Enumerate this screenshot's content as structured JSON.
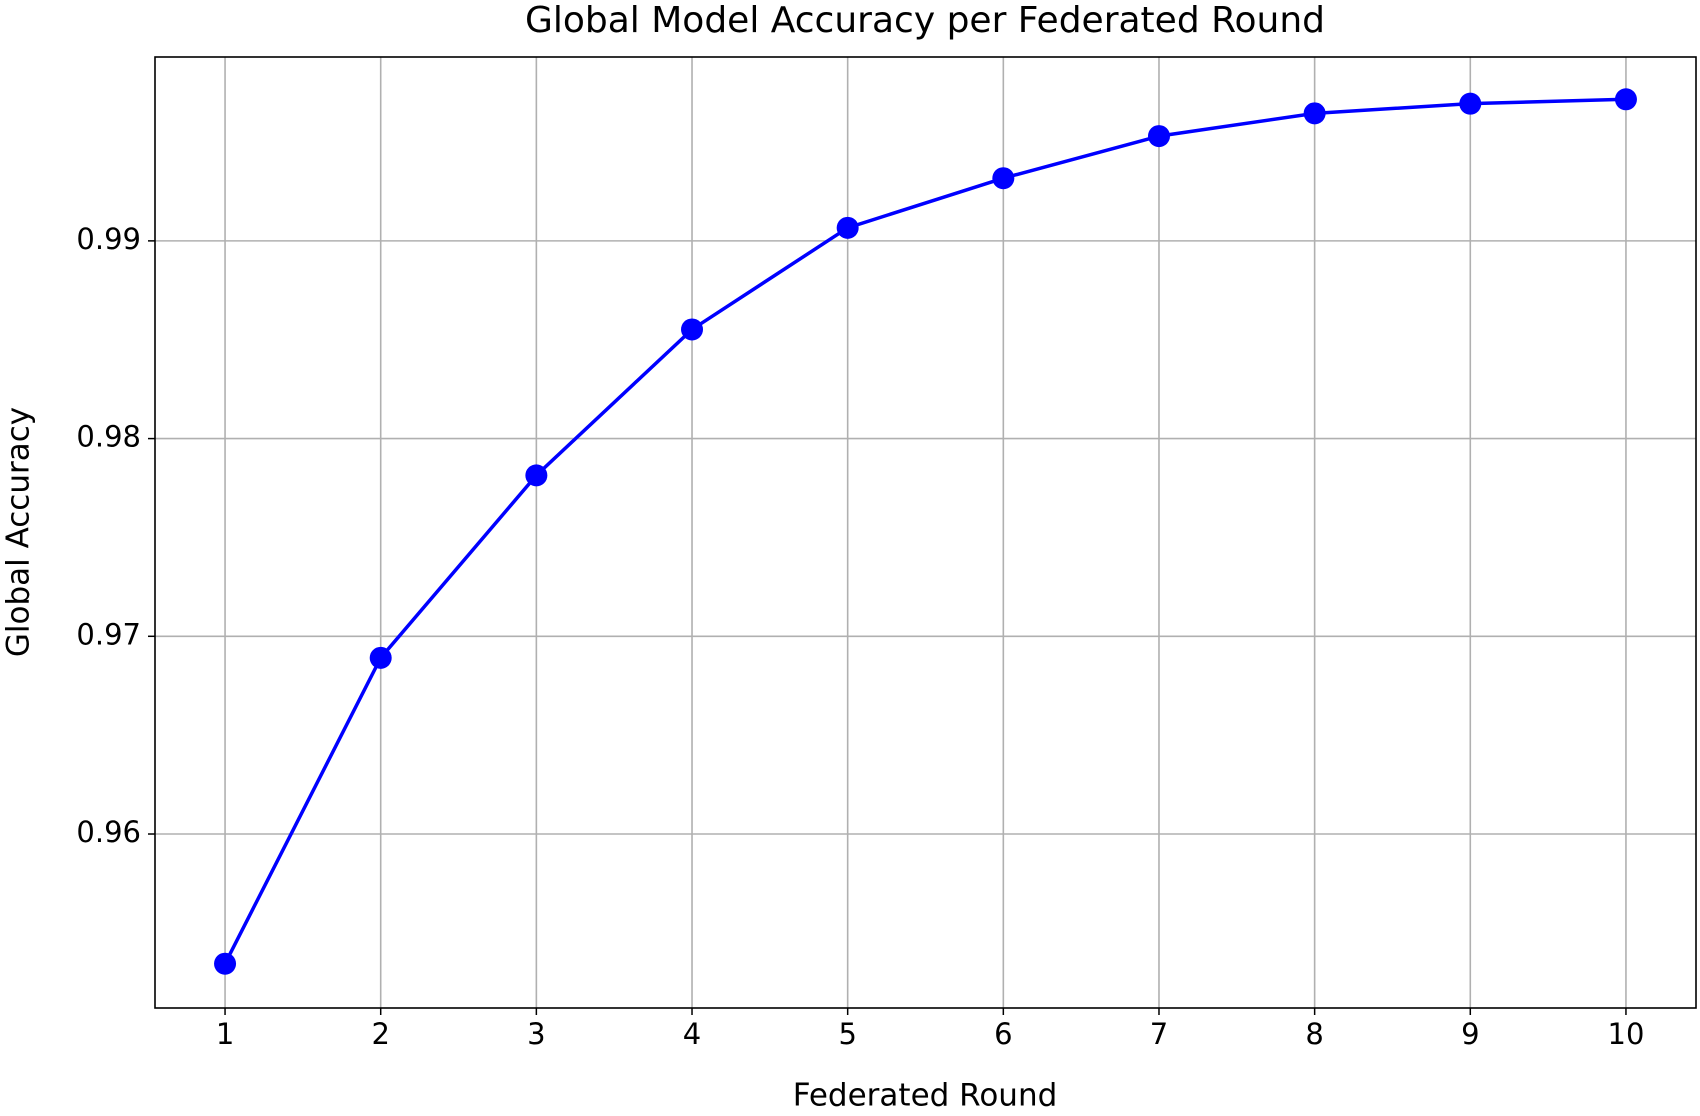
{
  "chart_data": {
    "type": "line",
    "title": "Global Model Accuracy per Federated Round",
    "xlabel": "Federated Round",
    "ylabel": "Global Accuracy",
    "x": [
      1,
      2,
      3,
      4,
      5,
      6,
      7,
      8,
      9,
      10
    ],
    "values": [
      0.95344,
      0.96891,
      0.97814,
      0.98552,
      0.99066,
      0.99317,
      0.9953,
      0.99645,
      0.99694,
      0.99716
    ],
    "color": "#0000ff",
    "xlim": [
      0.55,
      10.45
    ],
    "ylim": [
      0.9512,
      0.9993
    ],
    "xticks": [
      1,
      2,
      3,
      4,
      5,
      6,
      7,
      8,
      9,
      10
    ],
    "yticks": [
      0.96,
      0.97,
      0.98,
      0.99
    ],
    "grid": true
  }
}
